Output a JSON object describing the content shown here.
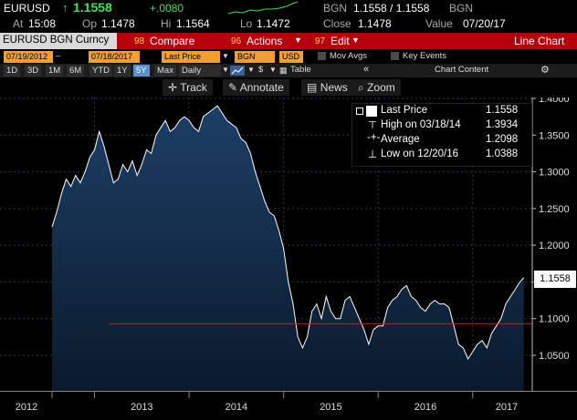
{
  "header": {
    "ticker": "EURUSD",
    "arrow": "↑",
    "price": "1.1558",
    "change": "+.0080",
    "source1": "BGN",
    "bid_ask": "1.1558 / 1.1558",
    "source2": "BGN",
    "at_label": "At",
    "at_value": "15:08",
    "op_label": "Op",
    "op_value": "1.1478",
    "hi_label": "Hi",
    "hi_value": "1.1564",
    "lo_label": "Lo",
    "lo_value": "1.1472",
    "close_label": "Close",
    "close_value": "1.1478",
    "value_label": "Value",
    "value_date": "07/20/17"
  },
  "titlebar": {
    "security": "EURUSD BGN Curncy",
    "compare_num": "98",
    "compare": "Compare",
    "actions_num": "96",
    "actions": "Actions",
    "edit_num": "97",
    "edit": "Edit",
    "chart_type": "Line Chart"
  },
  "options": {
    "start_date": "07/19/2012",
    "end_date": "07/18/2017",
    "field": "Last Price",
    "source": "BGN",
    "currency": "USD",
    "mov_avgs": "Mov Avgs",
    "key_events": "Key Events"
  },
  "periods": {
    "items": [
      "1D",
      "3D",
      "1M",
      "6M",
      "YTD",
      "1Y",
      "5Y",
      "Max"
    ],
    "selected": "5Y",
    "frequency": "Daily",
    "table": "Table",
    "chart_content": "Chart Content"
  },
  "tools": {
    "track": "Track",
    "annotate": "Annotate",
    "news": "News",
    "zoom": "Zoom"
  },
  "legend": {
    "last_price_label": "Last Price",
    "last_price_value": "1.1558",
    "high_label": "High on 03/18/14",
    "high_value": "1.3934",
    "average_label": "Average",
    "average_value": "1.2098",
    "low_label": "Low on 12/20/16",
    "low_value": "1.0388"
  },
  "chart_data": {
    "type": "area",
    "x_labels": [
      "2012",
      "2013",
      "2014",
      "2015",
      "2016",
      "2017"
    ],
    "y_ticks": [
      1.05,
      1.1,
      1.15,
      1.2,
      1.25,
      1.3,
      1.35,
      1.4
    ],
    "y_tick_labels": [
      "1.0500",
      "1.1000",
      "1.1500",
      "1.2000",
      "1.2500",
      "1.3000",
      "1.3500",
      "1.4000"
    ],
    "ylim": [
      1.0,
      1.42
    ],
    "last_price_label": "1.1558",
    "reference_line": 1.093,
    "line_color": "#ffffff",
    "fill_top_color": "#1d3f66",
    "fill_bottom_color": "#0a1a2c",
    "ref_line_color": "#d21c1c",
    "series": [
      {
        "x": [
          2012.55,
          2012.6,
          2012.65,
          2012.7,
          2012.75,
          2012.8,
          2012.85,
          2012.9,
          2012.95,
          2013.0,
          2013.05,
          2013.1,
          2013.15,
          2013.2,
          2013.25,
          2013.3,
          2013.35,
          2013.4,
          2013.45,
          2013.5,
          2013.55,
          2013.6,
          2013.65,
          2013.7,
          2013.75,
          2013.8,
          2013.85,
          2013.9,
          2013.95,
          2014.0,
          2014.05,
          2014.1,
          2014.15,
          2014.2,
          2014.25,
          2014.3,
          2014.35,
          2014.4,
          2014.45,
          2014.5,
          2014.55,
          2014.6,
          2014.65,
          2014.7,
          2014.75,
          2014.8,
          2014.85,
          2014.9,
          2014.95,
          2015.0,
          2015.05,
          2015.1,
          2015.15,
          2015.2,
          2015.25,
          2015.3,
          2015.35,
          2015.4,
          2015.45,
          2015.5,
          2015.55,
          2015.6,
          2015.65,
          2015.7,
          2015.75,
          2015.8,
          2015.85,
          2015.9,
          2015.95,
          2016.0,
          2016.05,
          2016.1,
          2016.15,
          2016.2,
          2016.25,
          2016.3,
          2016.35,
          2016.4,
          2016.45,
          2016.5,
          2016.55,
          2016.6,
          2016.65,
          2016.7,
          2016.75,
          2016.8,
          2016.85,
          2016.9,
          2016.95,
          2017.0,
          2017.05,
          2017.1,
          2017.15,
          2017.2,
          2017.25,
          2017.3,
          2017.35,
          2017.4,
          2017.45,
          2017.5,
          2017.54
        ],
        "y": [
          1.225,
          1.245,
          1.27,
          1.29,
          1.28,
          1.295,
          1.285,
          1.3,
          1.32,
          1.33,
          1.355,
          1.335,
          1.31,
          1.285,
          1.29,
          1.31,
          1.3,
          1.315,
          1.295,
          1.31,
          1.33,
          1.325,
          1.35,
          1.36,
          1.37,
          1.355,
          1.36,
          1.37,
          1.375,
          1.37,
          1.36,
          1.355,
          1.375,
          1.38,
          1.385,
          1.39,
          1.38,
          1.37,
          1.365,
          1.36,
          1.345,
          1.34,
          1.325,
          1.3,
          1.28,
          1.26,
          1.245,
          1.24,
          1.22,
          1.195,
          1.15,
          1.12,
          1.075,
          1.06,
          1.075,
          1.11,
          1.12,
          1.1,
          1.13,
          1.11,
          1.1,
          1.1,
          1.125,
          1.13,
          1.115,
          1.1,
          1.085,
          1.065,
          1.085,
          1.09,
          1.09,
          1.115,
          1.125,
          1.13,
          1.14,
          1.145,
          1.13,
          1.125,
          1.115,
          1.11,
          1.12,
          1.125,
          1.12,
          1.12,
          1.115,
          1.09,
          1.065,
          1.06,
          1.045,
          1.055,
          1.065,
          1.07,
          1.06,
          1.08,
          1.09,
          1.1,
          1.12,
          1.13,
          1.14,
          1.15,
          1.1558
        ]
      }
    ]
  }
}
